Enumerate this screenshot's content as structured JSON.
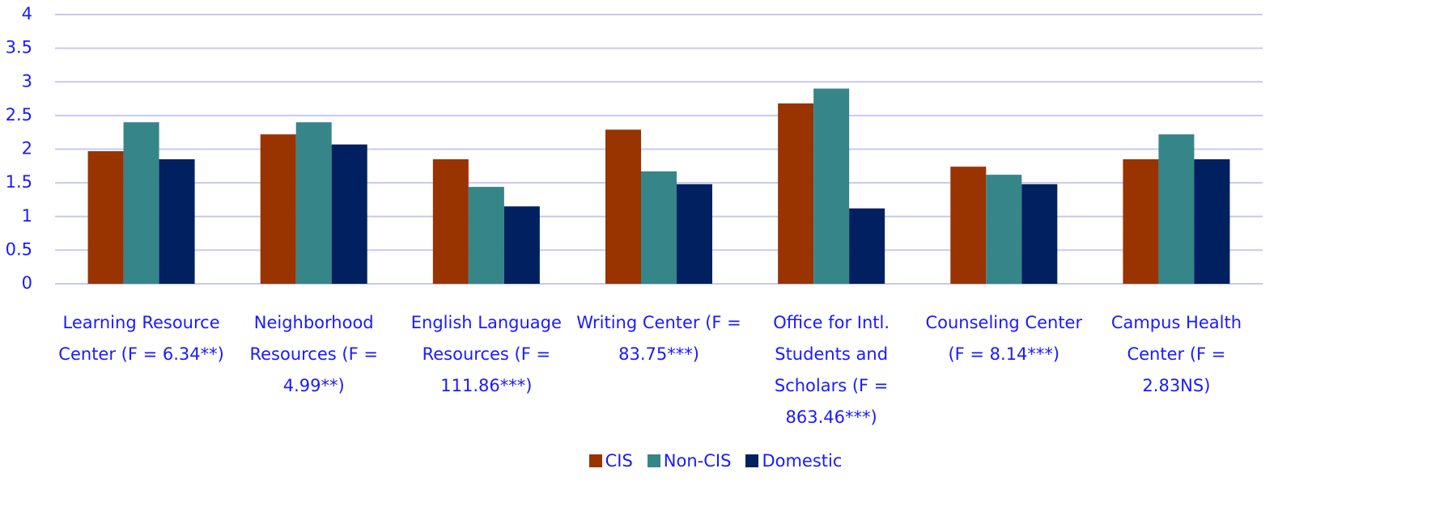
{
  "chart_data": {
    "type": "bar",
    "categories": [
      "Learning Resource Center (F = 6.34**)",
      "Neighborhood Resources (F = 4.99**)",
      "English Language Resources (F = 111.86***)",
      "Writing Center (F = 83.75***)",
      "Office for Intl. Students and Scholars (F = 863.46***)",
      "Counseling Center (F = 8.14***)",
      "Campus Health Center (F = 2.83NS)"
    ],
    "series": [
      {
        "name": "CIS",
        "color": "#993300",
        "values": [
          1.97,
          2.22,
          1.85,
          2.29,
          2.68,
          1.74,
          1.85
        ]
      },
      {
        "name": "Non-CIS",
        "color": "#368589",
        "values": [
          2.4,
          2.4,
          1.44,
          1.67,
          2.9,
          1.62,
          2.22
        ]
      },
      {
        "name": "Domestic",
        "color": "#002060",
        "values": [
          1.85,
          2.07,
          1.15,
          1.48,
          1.12,
          1.48,
          1.85
        ]
      }
    ],
    "ylim": [
      0,
      4
    ],
    "yticks": [
      0,
      0.5,
      1,
      1.5,
      2,
      2.5,
      3,
      3.5,
      4
    ],
    "grid": true,
    "legend": "bottom"
  }
}
